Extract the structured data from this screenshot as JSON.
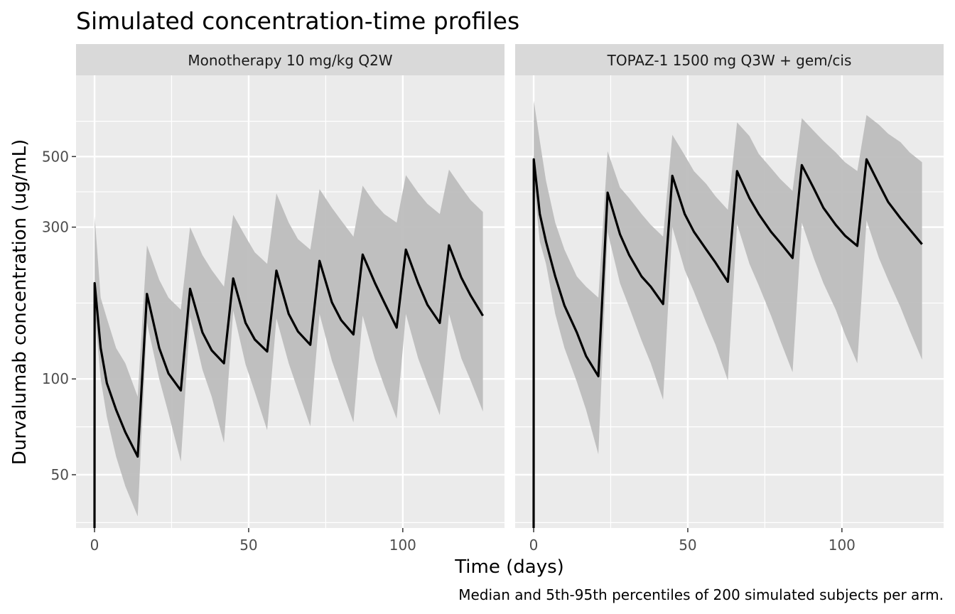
{
  "title": "Simulated concentration-time profiles",
  "caption": "Median and 5th-95th percentiles of 200 simulated subjects per arm.",
  "colors": {
    "panel_bg": "#ebebeb",
    "strip_bg": "#d9d9d9",
    "grid": "#ffffff",
    "band": "#bdbdbd",
    "line": "#000000"
  },
  "chart_data": {
    "type": "line",
    "xlabel": "Time (days)",
    "ylabel": "Durvalumab concentration (ug/mL)",
    "y_scale": "log",
    "xlim": [
      -6,
      133
    ],
    "ylim": [
      34,
      900
    ],
    "x_ticks": [
      0,
      50,
      100
    ],
    "y_ticks": [
      50,
      100,
      300,
      500
    ],
    "grid": true,
    "band_label": "5th-95th percentile",
    "line_label": "Median",
    "panels": [
      {
        "strip": "Monotherapy 10 mg/kg Q2W",
        "x": [
          0,
          0.04,
          2,
          4,
          7,
          10,
          14,
          17,
          21,
          24,
          28,
          31,
          35,
          38,
          42,
          45,
          49,
          52,
          56,
          59,
          63,
          66,
          70,
          73,
          77,
          80,
          84,
          87,
          91,
          94,
          98,
          101,
          105,
          108,
          112,
          115,
          119,
          122,
          126
        ],
        "median": [
          34,
          200,
          125,
          97,
          80,
          68,
          57,
          185,
          125,
          104,
          92,
          192,
          140,
          123,
          112,
          207,
          150,
          133,
          122,
          219,
          160,
          141,
          128,
          235,
          174,
          153,
          138,
          246,
          200,
          174,
          145,
          255,
          200,
          171,
          150,
          263,
          208,
          183,
          158
        ],
        "p5": [
          34,
          165,
          100,
          76,
          57,
          46,
          37,
          150,
          100,
          78,
          55,
          157,
          107,
          88,
          63,
          164,
          111,
          91,
          69,
          155,
          112,
          92,
          71,
          160,
          114,
          94,
          73,
          158,
          115,
          95,
          75,
          160,
          116,
          97,
          77,
          160,
          116,
          99,
          79
        ],
        "p95": [
          34,
          325,
          180,
          155,
          125,
          112,
          88,
          263,
          205,
          180,
          165,
          300,
          245,
          220,
          195,
          328,
          280,
          250,
          230,
          383,
          310,
          275,
          255,
          395,
          345,
          315,
          280,
          405,
          355,
          330,
          310,
          437,
          385,
          355,
          330,
          455,
          400,
          365,
          335
        ]
      },
      {
        "strip": "TOPAZ-1 1500 mg Q3W + gem/cis",
        "x": [
          0,
          0.04,
          2,
          4,
          7,
          10,
          14,
          17,
          21,
          24,
          28,
          31,
          35,
          38,
          42,
          45,
          49,
          52,
          56,
          59,
          63,
          66,
          70,
          73,
          77,
          80,
          84,
          87,
          91,
          94,
          98,
          101,
          105,
          108,
          112,
          115,
          119,
          122,
          126
        ],
        "median": [
          34,
          490,
          330,
          270,
          210,
          170,
          140,
          118,
          102,
          385,
          285,
          245,
          210,
          195,
          172,
          435,
          330,
          290,
          255,
          232,
          202,
          450,
          370,
          330,
          290,
          268,
          240,
          470,
          395,
          345,
          305,
          282,
          262,
          490,
          410,
          360,
          320,
          295,
          265
        ],
        "p5": [
          34,
          420,
          270,
          230,
          160,
          125,
          98,
          80,
          58,
          290,
          200,
          168,
          132,
          112,
          86,
          300,
          220,
          188,
          150,
          128,
          99,
          307,
          230,
          197,
          158,
          132,
          105,
          310,
          238,
          200,
          165,
          138,
          112,
          315,
          240,
          205,
          168,
          142,
          115
        ],
        "p95": [
          34,
          750,
          560,
          420,
          310,
          255,
          210,
          195,
          180,
          520,
          400,
          370,
          330,
          305,
          280,
          585,
          505,
          450,
          410,
          375,
          340,
          640,
          580,
          510,
          460,
          425,
          390,
          660,
          600,
          560,
          515,
          480,
          450,
          675,
          630,
          590,
          555,
          515,
          480
        ]
      }
    ]
  }
}
